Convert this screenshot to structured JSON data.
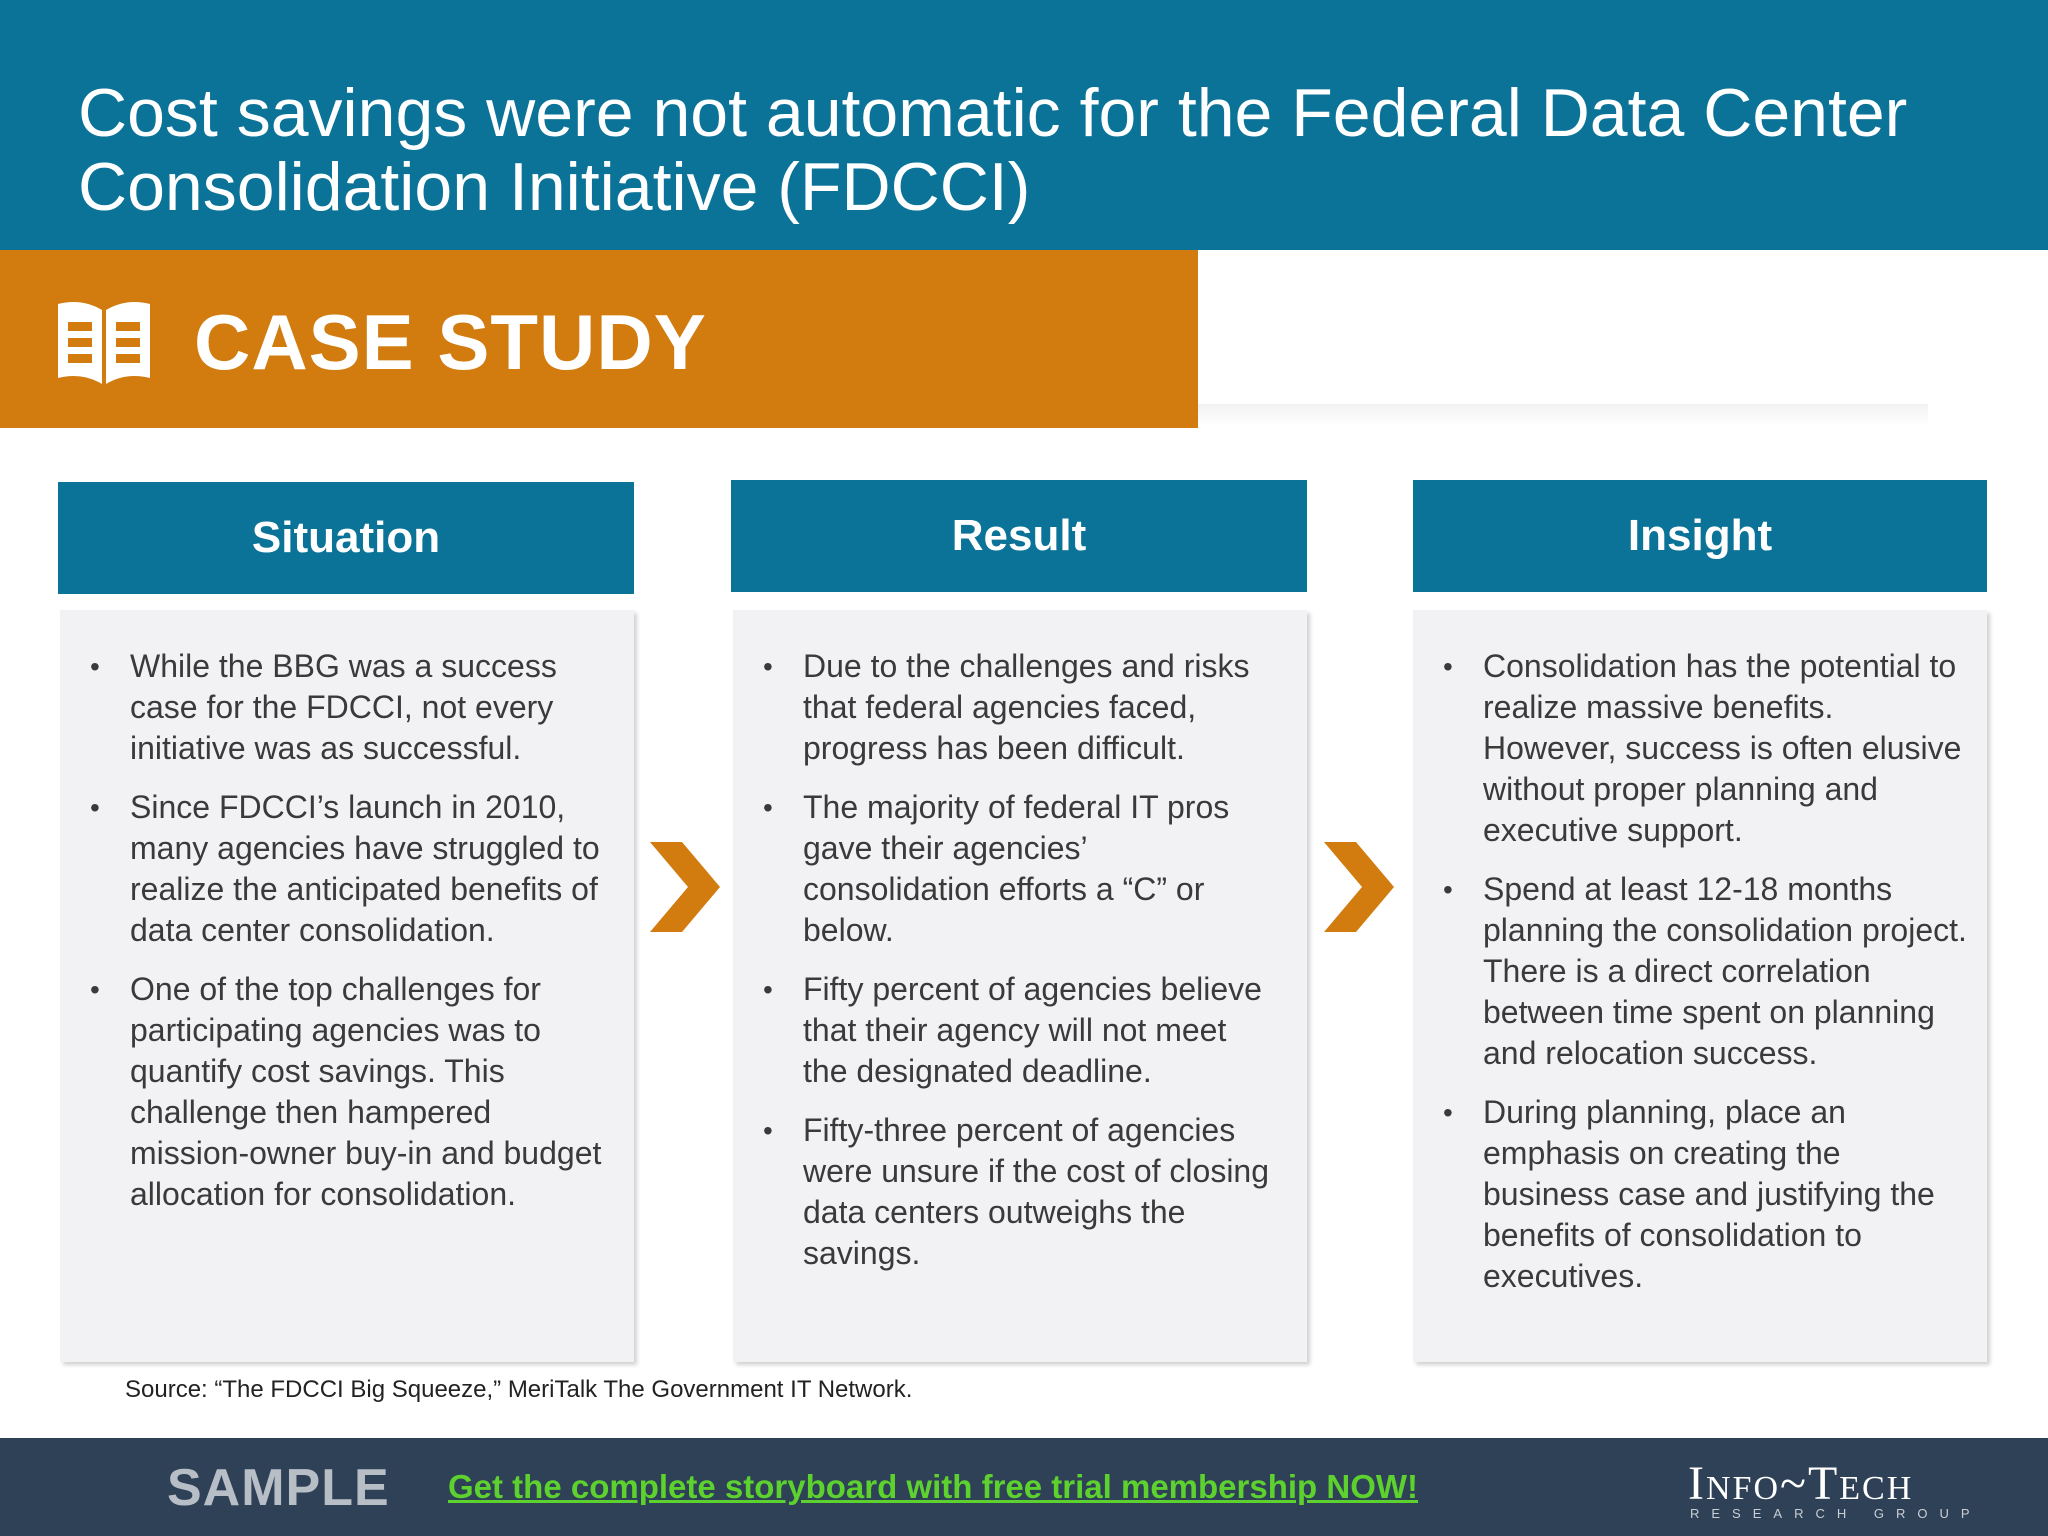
{
  "title": "Cost savings were not automatic for the Federal Data Center Consolidation Initiative (FDCCI)",
  "banner": {
    "label": "CASE STUDY",
    "icon": "open-book-icon"
  },
  "colors": {
    "teal": "#0a7397",
    "orange": "#d27b0f",
    "footer": "#2f4157",
    "cta_green": "#5dd12e"
  },
  "columns": [
    {
      "header": "Situation",
      "bullets": [
        "While the BBG was a success case for the FDCCI, not every initiative was as successful.",
        "Since FDCCI’s launch in 2010, many agencies have struggled to realize the anticipated benefits of data center consolidation.",
        "One of the top challenges for participating agencies was to quantify cost savings. This challenge then hampered mission-owner buy-in and budget allocation for consolidation."
      ]
    },
    {
      "header": "Result",
      "bullets": [
        "Due to the challenges and risks that federal agencies faced, progress has been difficult.",
        "The majority of federal IT pros gave their agencies’ consolidation efforts a “C” or below.",
        "Fifty percent of agencies believe that their agency will not meet the designated deadline.",
        "Fifty-three percent of agencies were unsure if the cost of closing data centers outweighs the savings."
      ]
    },
    {
      "header": "Insight",
      "bullets": [
        "Consolidation has the potential to realize massive benefits. However, success is often elusive without proper planning and executive support.",
        "Spend at least 12-18 months planning the consolidation project. There is a direct correlation between time spent on planning and relocation success.",
        "During planning, place an emphasis on creating the business case and justifying the benefits of consolidation to executives."
      ]
    }
  ],
  "source": "Source: “The FDCCI Big Squeeze,” MeriTalk The Government IT Network.",
  "footer": {
    "sample": "SAMPLE",
    "cta": "Get the complete storyboard with free trial membership NOW!",
    "brand": "Info~Tech",
    "brand_sub": "RESEARCH GROUP"
  }
}
